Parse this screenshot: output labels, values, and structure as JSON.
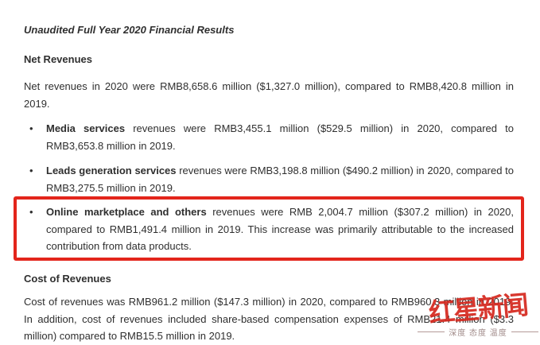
{
  "glyphs": {
    "bullet": "•"
  },
  "colors": {
    "highlight_border": "#e3251b",
    "watermark_red": "#d5281e",
    "text": "#2f2f2f",
    "background": "#ffffff"
  },
  "document": {
    "title": "Unaudited Full Year 2020 Financial Results",
    "net_revenues": {
      "heading": "Net Revenues",
      "intro": "Net revenues in 2020 were RMB8,658.6 million ($1,327.0 million), compared to RMB8,420.8 million in 2019.",
      "bullets": [
        {
          "lead": "Media services",
          "rest": " revenues were RMB3,455.1 million ($529.5 million) in 2020, compared to RMB3,653.8 million in 2019.",
          "highlighted": false
        },
        {
          "lead": "Leads generation services",
          "rest": " revenues were RMB3,198.8 million ($490.2 million) in 2020, compared to RMB3,275.5 million in 2019.",
          "highlighted": false
        },
        {
          "lead": "Online marketplace and others",
          "rest": " revenues were RMB 2,004.7 million ($307.2 million) in 2020, compared to RMB1,491.4 million in 2019. This increase was primarily attributable to the increased contribution from data products.",
          "highlighted": true
        }
      ]
    },
    "cost_of_revenues": {
      "heading": "Cost of Revenues",
      "body": "Cost of revenues was RMB961.2 million ($147.3 million) in 2020, compared to RMB960.3 million in 2019. In addition, cost of revenues included share-based compensation expenses of RMB21.4 million ($3.3 million) compared to RMB15.5 million in 2019."
    }
  },
  "watermark": {
    "logo_text": "红星新闻",
    "tagline": "深度 态度 温度"
  }
}
